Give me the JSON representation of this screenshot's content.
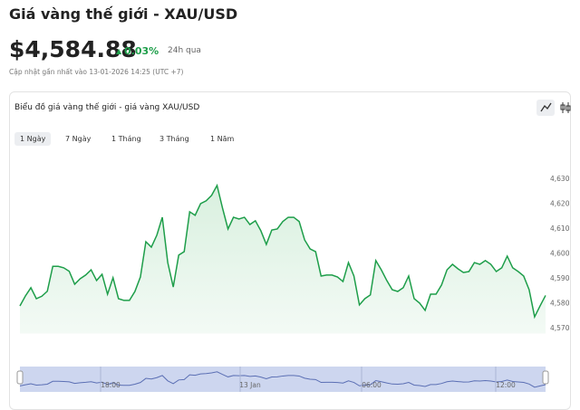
{
  "header": {
    "title": "Giá vàng thế giới - XAU/USD",
    "price": "$4,584.88",
    "change": "0.03%",
    "change_period": "24h qua",
    "updated": "Cập nhật gần nhất vào 13-01-2026 14:25 (UTC +7)"
  },
  "panel": {
    "title": "Biểu đồ giá vàng thế giới - giá vàng XAU/USD",
    "tabs": [
      "1 Ngày",
      "7 Ngày",
      "1 Tháng",
      "3 Tháng",
      "1 Năm"
    ],
    "selected_tab": 0
  },
  "chart_data": {
    "type": "line",
    "color": "#1e9e4a",
    "values": [
      4579.1,
      4583.1,
      4586.4,
      4582,
      4583,
      4585,
      4595,
      4595,
      4594.4,
      4593,
      4587.8,
      4590,
      4591.5,
      4593.6,
      4589.3,
      4591.8,
      4583.8,
      4590.4,
      4582,
      4581.3,
      4581.3,
      4584.9,
      4590.7,
      4604.9,
      4602.7,
      4607.5,
      4614.7,
      4596.5,
      4586.7,
      4599.5,
      4600.9,
      4616.9,
      4615.5,
      4620.2,
      4621.3,
      4623.5,
      4627.5,
      4618.4,
      4610,
      4614.7,
      4614,
      4614.7,
      4611.8,
      4613.3,
      4609.3,
      4603.8,
      4609.6,
      4610,
      4613,
      4614.7,
      4614.7,
      4613,
      4605.6,
      4602,
      4600.9,
      4591.1,
      4591.5,
      4591.5,
      4590.7,
      4588.9,
      4596.5,
      4591.1,
      4579.5,
      4582,
      4583.5,
      4597.3,
      4593.6,
      4589.3,
      4585.6,
      4584.9,
      4586.4,
      4591.1,
      4582,
      4580.2,
      4577.3,
      4583.8,
      4583.8,
      4587.5,
      4593.6,
      4595.8,
      4594,
      4592.5,
      4592.9,
      4596.5,
      4595.8,
      4597.3,
      4595.8,
      4592.9,
      4594.4,
      4599.1,
      4594.4,
      4592.9,
      4591.1,
      4585.6,
      4574.7,
      4579.1,
      4583.3
    ],
    "ylim": [
      4568,
      4636
    ],
    "yticks": [
      {
        "value": 4570,
        "label": "4,570"
      },
      {
        "value": 4580,
        "label": "4,580"
      },
      {
        "value": 4590,
        "label": "4,590"
      },
      {
        "value": 4600,
        "label": "4,600"
      },
      {
        "value": 4610,
        "label": "4,610"
      },
      {
        "value": 4620,
        "label": "4,620"
      },
      {
        "value": 4630,
        "label": "4,630"
      }
    ],
    "navigator_labels": [
      "18:00",
      "13 Jan",
      "06:00",
      "12:00"
    ]
  }
}
